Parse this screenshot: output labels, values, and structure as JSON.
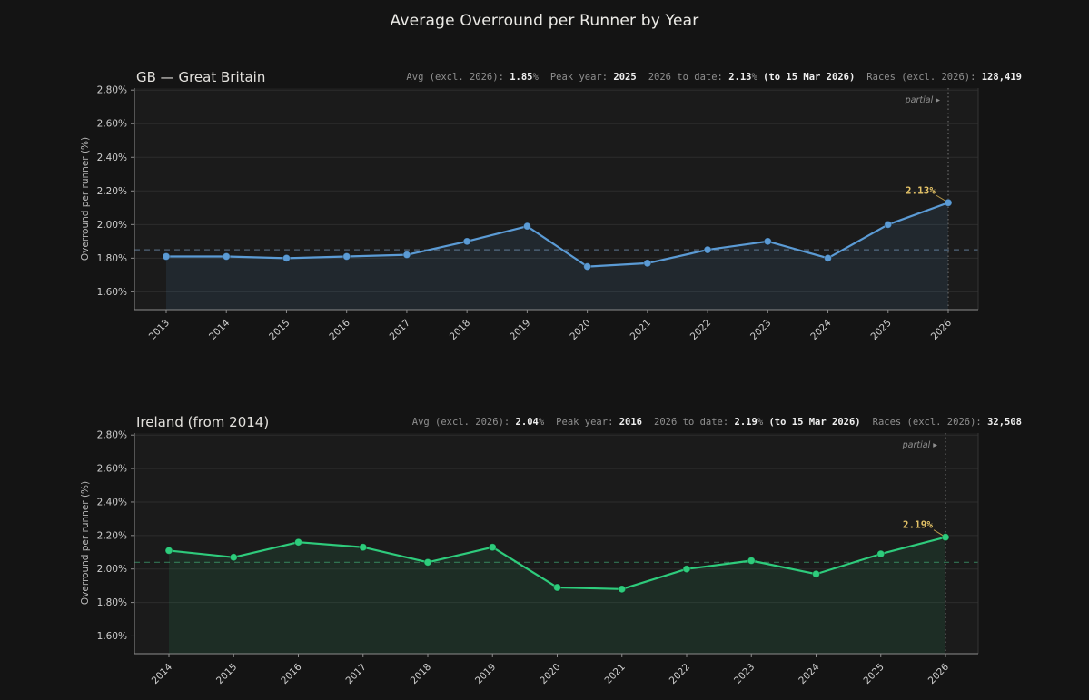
{
  "page": {
    "title": "Average Overround per Runner by Year",
    "background": "#141414",
    "annotation_color": "#e3c267",
    "partial_divider_color": "#747474"
  },
  "chart_data": [
    {
      "type": "line",
      "region": "GB",
      "title": "GB — Great Britain",
      "line_color": "#5b9bd5",
      "fill_color": "rgba(91,155,213,0.10)",
      "avg_color": "rgba(125,160,200,0.55)",
      "categories": [
        "2013",
        "2014",
        "2015",
        "2016",
        "2017",
        "2018",
        "2019",
        "2020",
        "2021",
        "2022",
        "2023",
        "2024",
        "2025",
        "2026"
      ],
      "values": [
        1.81,
        1.81,
        1.8,
        1.81,
        1.82,
        1.9,
        1.99,
        1.75,
        1.77,
        1.85,
        1.9,
        1.8,
        2.0,
        2.13
      ],
      "ylabel": "Overround per runner (%)",
      "yticks": [
        1.6,
        1.8,
        2.0,
        2.2,
        2.4,
        2.6,
        2.8
      ],
      "ylim": [
        1.494,
        2.812
      ],
      "grid": "horizontal",
      "avg_value": 1.85,
      "annotation": {
        "text": "2.13%",
        "category": "2026",
        "value": 2.13
      },
      "partial_label": "partial ▸",
      "partial_category": "2026",
      "stats": [
        {
          "label": "Avg (excl. 2026):",
          "value": "1.85",
          "suffix": "%"
        },
        {
          "label": "Peak year:",
          "value": "2025"
        },
        {
          "label": "2026 to date:",
          "value": "2.13",
          "suffix": "%",
          "extra": "(to 15 Mar 2026)"
        },
        {
          "label": "Races (excl. 2026):",
          "value": "128,419"
        }
      ]
    },
    {
      "type": "line",
      "region": "Ireland",
      "title": "Ireland (from 2014)",
      "line_color": "#2ecc7c",
      "fill_color": "rgba(46,204,124,0.10)",
      "avg_color": "rgba(70,190,130,0.55)",
      "categories": [
        "2014",
        "2015",
        "2016",
        "2017",
        "2018",
        "2019",
        "2020",
        "2021",
        "2022",
        "2023",
        "2024",
        "2025",
        "2026"
      ],
      "values": [
        2.11,
        2.07,
        2.16,
        2.13,
        2.04,
        2.13,
        1.89,
        1.88,
        2.0,
        2.05,
        1.97,
        2.09,
        2.19
      ],
      "ylabel": "Overround per runner (%)",
      "yticks": [
        1.6,
        1.8,
        2.0,
        2.2,
        2.4,
        2.6,
        2.8
      ],
      "ylim": [
        1.494,
        2.812
      ],
      "grid": "horizontal",
      "avg_value": 2.04,
      "annotation": {
        "text": "2.19%",
        "category": "2026",
        "value": 2.19
      },
      "partial_label": "partial ▸",
      "partial_category": "2026",
      "stats": [
        {
          "label": "Avg (excl. 2026):",
          "value": "2.04",
          "suffix": "%"
        },
        {
          "label": "Peak year:",
          "value": "2016"
        },
        {
          "label": "2026 to date:",
          "value": "2.19",
          "suffix": "%",
          "extra": "(to 15 Mar 2026)"
        },
        {
          "label": "Races (excl. 2026):",
          "value": "32,508"
        }
      ]
    }
  ]
}
